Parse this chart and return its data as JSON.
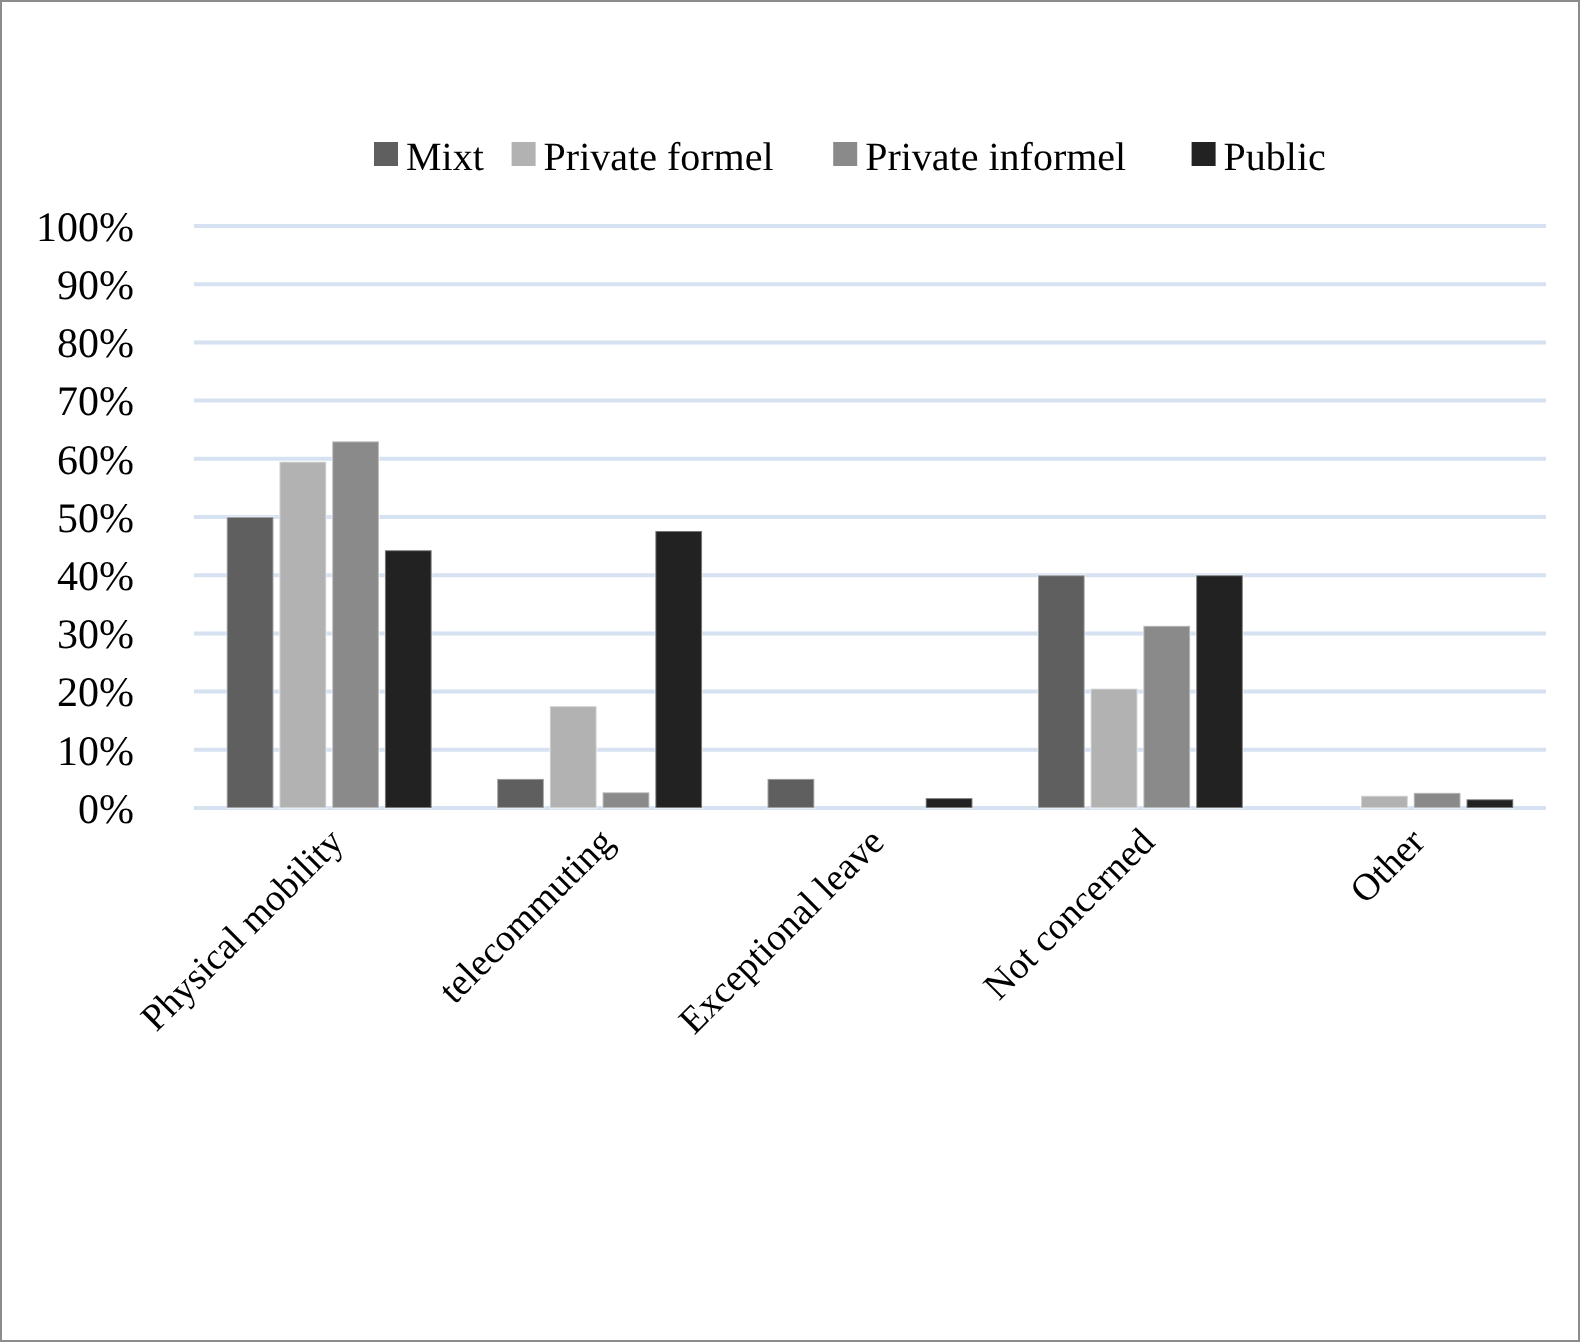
{
  "chart_data": {
    "type": "bar",
    "categories": [
      "Physical mobility",
      "telecommuting",
      "Exceptional leave",
      "Not concerned",
      "Other"
    ],
    "series": [
      {
        "name": "Mixt",
        "color": "#5f5f5f",
        "values": [
          50,
          5,
          5,
          40,
          0
        ]
      },
      {
        "name": "Private formel",
        "color": "#b2b2b2",
        "values": [
          59.5,
          17.5,
          0,
          20.5,
          2.1
        ]
      },
      {
        "name": "Private informel",
        "color": "#8a8a8a",
        "values": [
          63,
          2.7,
          0,
          31.3,
          2.6
        ]
      },
      {
        "name": "Public",
        "color": "#222222",
        "values": [
          44.3,
          47.6,
          1.7,
          40,
          1.5
        ]
      }
    ],
    "ylim": [
      0,
      100
    ],
    "yticks": [
      {
        "value": 0,
        "label": "0%"
      },
      {
        "value": 10,
        "label": "10%"
      },
      {
        "value": 20,
        "label": "20%"
      },
      {
        "value": 30,
        "label": "30%"
      },
      {
        "value": 40,
        "label": "40%"
      },
      {
        "value": 50,
        "label": "50%"
      },
      {
        "value": 60,
        "label": "60%"
      },
      {
        "value": 70,
        "label": "70%"
      },
      {
        "value": 80,
        "label": "80%"
      },
      {
        "value": 90,
        "label": "90%"
      },
      {
        "value": 100,
        "label": "100%"
      }
    ],
    "grid": "y",
    "legend": "top"
  }
}
